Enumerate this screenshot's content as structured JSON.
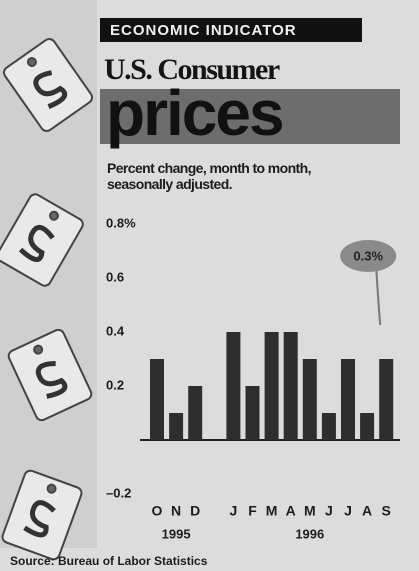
{
  "header": "ECONOMIC INDICATOR",
  "chart_data": {
    "type": "bar",
    "title": "U.S. Consumer",
    "title_emphasis": "prices",
    "subtitle": "Percent change, month to month, seasonally adjusted.",
    "categories": [
      "O",
      "N",
      "D",
      null,
      "J",
      "F",
      "M",
      "A",
      "M",
      "J",
      "J",
      "A",
      "S"
    ],
    "values": [
      0.3,
      0.1,
      0.2,
      null,
      0.4,
      0.2,
      0.4,
      0.4,
      0.3,
      0.1,
      0.3,
      0.1,
      0.3
    ],
    "x_groups": [
      "1995",
      "1996"
    ],
    "color": "#2e2e2e",
    "ylim": [
      -0.2,
      0.8
    ],
    "yticks": [
      {
        "value": -0.2,
        "label": "–0.2"
      },
      0.2,
      0.4,
      0.6,
      {
        "value": 0.8,
        "label": "0.8%"
      }
    ],
    "annotation": "0.3%",
    "source": "Source: Bureau of Labor Statistics"
  }
}
